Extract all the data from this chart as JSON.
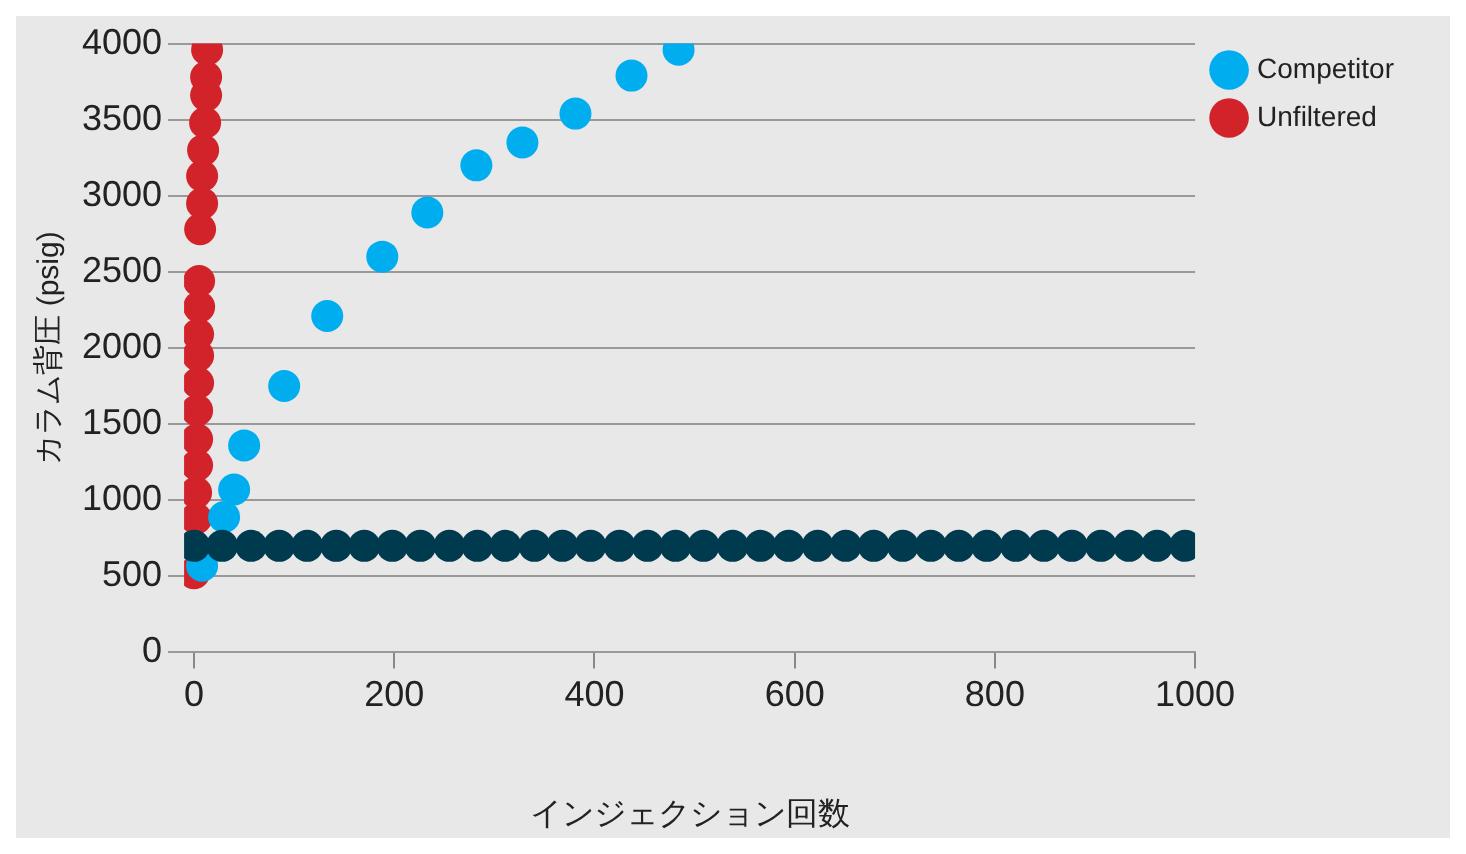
{
  "chart_data": {
    "type": "scatter",
    "xlabel": "インジェクション回数",
    "ylabel": "カラム背圧 (psig)",
    "xlim": [
      -10,
      1000
    ],
    "xticks": [
      0,
      200,
      400,
      600,
      800,
      1000
    ],
    "ylim": [
      0,
      4000
    ],
    "yticks": [
      0,
      500,
      1000,
      1500,
      2000,
      2500,
      3000,
      3500,
      4000
    ],
    "grid": "y",
    "legend": "top right",
    "marker": "circle",
    "series": [
      {
        "name": "Unfiltered",
        "color": "#d2232a",
        "x": [
          0,
          2,
          2,
          3,
          3,
          3,
          4,
          4,
          4,
          5,
          5,
          6,
          8,
          8,
          9,
          11,
          12,
          12,
          13
        ],
        "values": [
          520,
          880,
          1050,
          1230,
          1400,
          1590,
          1770,
          1950,
          2090,
          2270,
          2440,
          2780,
          2950,
          3130,
          3300,
          3480,
          3660,
          3780,
          3960
        ]
      },
      {
        "color": "#003a4f",
        "x": [
          0,
          28,
          57,
          85,
          113,
          142,
          170,
          198,
          226,
          255,
          283,
          311,
          340,
          368,
          396,
          425,
          453,
          481,
          509,
          538,
          566,
          594,
          623,
          651,
          679,
          708,
          736,
          764,
          792,
          821,
          849,
          877,
          906,
          934,
          962,
          990
        ],
        "values": [
          700,
          700,
          700,
          700,
          700,
          700,
          700,
          700,
          700,
          700,
          700,
          700,
          700,
          700,
          700,
          700,
          700,
          700,
          700,
          700,
          700,
          700,
          700,
          700,
          700,
          700,
          700,
          700,
          700,
          700,
          700,
          700,
          700,
          700,
          700,
          700
        ]
      },
      {
        "name": "Competitor",
        "color": "#00aeef",
        "x": [
          8,
          30,
          40,
          50,
          90,
          133,
          188,
          233,
          282,
          328,
          381,
          437,
          484
        ],
        "values": [
          570,
          890,
          1070,
          1360,
          1750,
          2210,
          2600,
          2890,
          3200,
          3350,
          3540,
          3790,
          3960
        ]
      }
    ]
  }
}
